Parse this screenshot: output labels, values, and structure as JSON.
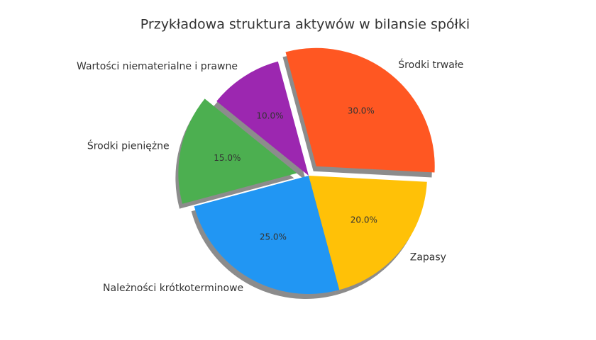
{
  "chart_data": {
    "type": "pie",
    "title": "Przykładowa struktura aktywów w bilansie spółki",
    "categories": [
      "Środki trwałe",
      "Zapasy",
      "Należności krótkoterminowe",
      "Środki pieniężne",
      "Wartości niematerialne i prawne"
    ],
    "values": [
      30,
      20,
      25,
      15,
      10
    ],
    "value_labels": [
      "30.0%",
      "20.0%",
      "25.0%",
      "15.0%",
      "10.0%"
    ],
    "colors": [
      "#FF5722",
      "#FFC107",
      "#2196F3",
      "#4CAF50",
      "#9C27B0"
    ],
    "explode": [
      true,
      false,
      false,
      true,
      false
    ],
    "shadow": true
  }
}
